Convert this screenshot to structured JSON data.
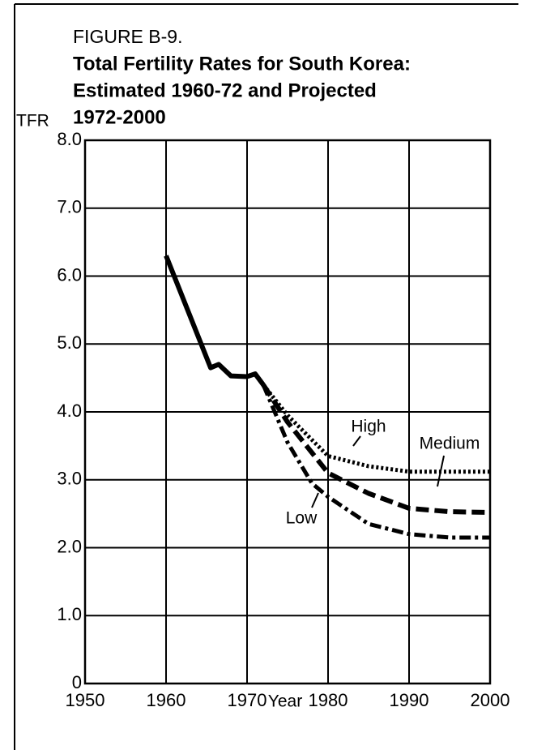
{
  "chart_data": {
    "type": "line",
    "figure_label": "FIGURE B-9.",
    "title": [
      "Total Fertility Rates for South Korea:",
      "Estimated 1960-72 and Projected",
      "1972-2000"
    ],
    "y_label": "TFR",
    "x_label": "Year",
    "xlim": [
      1950,
      2000
    ],
    "xticks": [
      1950,
      1960,
      1970,
      1980,
      1990,
      2000
    ],
    "ylim": [
      0,
      8
    ],
    "yticks": [
      0,
      {
        "value": 1,
        "label": "1.0"
      },
      {
        "value": 2,
        "label": "2.0"
      },
      {
        "value": 3,
        "label": "3.0"
      },
      {
        "value": 4,
        "label": "4.0"
      },
      {
        "value": 5,
        "label": "5.0"
      },
      {
        "value": 6,
        "label": "6.0"
      },
      {
        "value": 7,
        "label": "7.0"
      },
      {
        "value": 8,
        "label": "8.0"
      }
    ],
    "grid": true,
    "series": [
      {
        "color": "#000000",
        "style": "solid",
        "x": [
          1960,
          1965.5,
          1966.5,
          1968,
          1970,
          1971,
          1972
        ],
        "values": [
          6.3,
          4.65,
          4.7,
          4.53,
          4.52,
          4.56,
          4.4
        ]
      },
      {
        "name": "High",
        "color": "#000000",
        "style": "dotted",
        "x": [
          1972,
          1975,
          1980,
          1985,
          1990,
          1995,
          2000
        ],
        "values": [
          4.4,
          3.95,
          3.35,
          3.2,
          3.12,
          3.12,
          3.12
        ]
      },
      {
        "name": "Medium",
        "color": "#000000",
        "style": "dashed",
        "x": [
          1972,
          1975,
          1980,
          1985,
          1990,
          1995,
          2000
        ],
        "values": [
          4.4,
          3.85,
          3.1,
          2.8,
          2.58,
          2.53,
          2.52
        ]
      },
      {
        "name": "Low",
        "color": "#000000",
        "style": "dashdot",
        "x": [
          1972,
          1975,
          1978,
          1980,
          1985,
          1990,
          1995,
          2000
        ],
        "values": [
          4.4,
          3.55,
          2.95,
          2.75,
          2.35,
          2.2,
          2.15,
          2.15
        ]
      }
    ]
  }
}
